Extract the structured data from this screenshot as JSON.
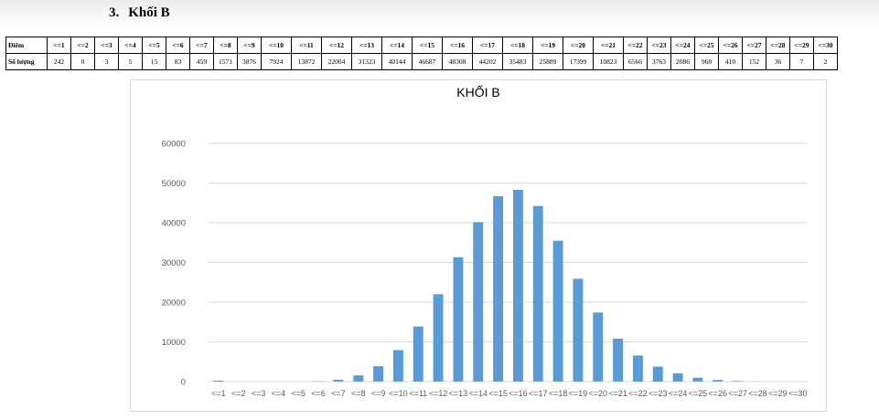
{
  "heading": {
    "number": "3.",
    "title": "Khối B"
  },
  "table": {
    "row1_label": "Điểm",
    "row2_label": "Số lượng",
    "headers": [
      "<=1",
      "<=2",
      "<=3",
      "<=4",
      "<=5",
      "<=6",
      "<=7",
      "<=8",
      "<=9",
      "<=10",
      "<=11",
      "<=12",
      "<=13",
      "<=14",
      "<=15",
      "<=16",
      "<=17",
      "<=18",
      "<=19",
      "<=20",
      "<=21",
      "<=22",
      "<=23",
      "<=24",
      "<=25",
      "<=26",
      "<=27",
      "<=28",
      "<=29",
      "<=30"
    ],
    "counts": [
      "242",
      "0",
      "3",
      "5",
      "15",
      "83",
      "459",
      "1571",
      "3876",
      "7924",
      "13872",
      "22004",
      "31323",
      "40144",
      "46687",
      "48308",
      "44202",
      "35483",
      "25889",
      "17399",
      "10823",
      "6566",
      "3763",
      "2086",
      "968",
      "410",
      "152",
      "36",
      "7",
      "2"
    ]
  },
  "chart_data": {
    "type": "bar",
    "title": "KHỐI B",
    "categories": [
      "<=1",
      "<=2",
      "<=3",
      "<=4",
      "<=5",
      "<=6",
      "<=7",
      "<=8",
      "<=9",
      "<=10",
      "<=11",
      "<=12",
      "<=13",
      "<=14",
      "<=15",
      "<=16",
      "<=17",
      "<=18",
      "<=19",
      "<=20",
      "<=21",
      "<=22",
      "<=23",
      "<=24",
      "<=25",
      "<=26",
      "<=27",
      "<=28",
      "<=29",
      "<=30"
    ],
    "values": [
      242,
      0,
      3,
      5,
      15,
      83,
      459,
      1571,
      3876,
      7924,
      13872,
      22004,
      31323,
      40144,
      46687,
      48308,
      44202,
      35483,
      25889,
      17399,
      10823,
      6566,
      3763,
      2086,
      968,
      410,
      152,
      36,
      7,
      2
    ],
    "ylim": [
      0,
      60000
    ],
    "yticks": [
      0,
      10000,
      20000,
      30000,
      40000,
      50000,
      60000
    ],
    "grid": true,
    "bar_color": "#5b9bd5",
    "gridline_color": "#d9d9d9",
    "text_color": "#595959"
  }
}
